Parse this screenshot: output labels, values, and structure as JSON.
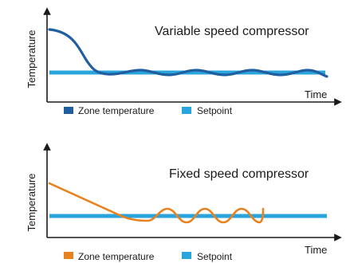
{
  "colors": {
    "zone_variable": "#1f5fa0",
    "zone_fixed": "#e8821e",
    "setpoint": "#2aa4dc",
    "axis": "#1a1a1a"
  },
  "panels": [
    {
      "id": "variable",
      "title": "Variable speed compressor",
      "y_axis_label": "Temperature",
      "x_axis_label": "Time",
      "legend": [
        {
          "label": "Zone temperature",
          "color_key": "zone_variable"
        },
        {
          "label": "Setpoint",
          "color_key": "setpoint"
        }
      ]
    },
    {
      "id": "fixed",
      "title": "Fixed speed compressor",
      "y_axis_label": "Temperature",
      "x_axis_label": "Time",
      "legend": [
        {
          "label": "Zone temperature",
          "color_key": "zone_fixed"
        },
        {
          "label": "Setpoint",
          "color_key": "setpoint"
        }
      ]
    }
  ]
}
